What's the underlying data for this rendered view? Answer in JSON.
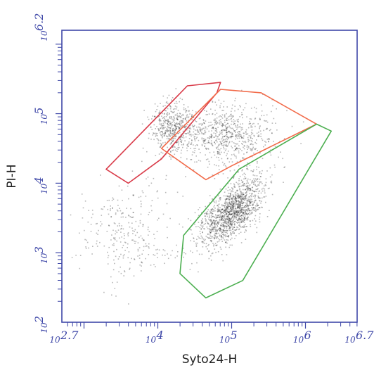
{
  "chart_data": {
    "type": "scatter",
    "title": "",
    "xlabel": "Syto24-H",
    "ylabel": "PI-H",
    "xscale": "log",
    "yscale": "log",
    "xlim": [
      2.7,
      6.7
    ],
    "ylim": [
      2,
      6.2
    ],
    "grid": false,
    "x_tick_labels": [
      {
        "value": 2.7,
        "base": "10",
        "exp": "2.7"
      },
      {
        "value": 4,
        "base": "10",
        "exp": "4"
      },
      {
        "value": 5,
        "base": "10",
        "exp": "5"
      },
      {
        "value": 6,
        "base": "10",
        "exp": "6"
      },
      {
        "value": 6.7,
        "base": "10",
        "exp": "6.7"
      }
    ],
    "y_tick_labels": [
      {
        "value": 2,
        "base": "10",
        "exp": "2"
      },
      {
        "value": 3,
        "base": "10",
        "exp": "3"
      },
      {
        "value": 4,
        "base": "10",
        "exp": "4"
      },
      {
        "value": 5,
        "base": "10",
        "exp": "5"
      },
      {
        "value": 6.2,
        "base": "10",
        "exp": "6.2"
      }
    ],
    "clusters": [
      {
        "cx": 5.0,
        "cy": 3.6,
        "sx": 0.14,
        "sy": 0.3,
        "rot": -0.7,
        "n": 1400
      },
      {
        "cx": 4.2,
        "cy": 4.8,
        "sx": 0.16,
        "sy": 0.16,
        "rot": 0.3,
        "n": 500
      },
      {
        "cx": 4.95,
        "cy": 4.7,
        "sx": 0.32,
        "sy": 0.22,
        "rot": 0.1,
        "n": 700
      },
      {
        "cx": 3.6,
        "cy": 3.3,
        "sx": 0.35,
        "sy": 0.35,
        "rot": 0.3,
        "n": 300
      }
    ],
    "gates": [
      {
        "color": "#d93c4a",
        "points": [
          [
            3.3,
            4.2
          ],
          [
            4.4,
            5.4
          ],
          [
            4.85,
            5.45
          ],
          [
            4.8,
            5.3
          ],
          [
            4.05,
            4.35
          ],
          [
            3.6,
            4.0
          ]
        ]
      },
      {
        "color": "#f26b4a",
        "points": [
          [
            4.05,
            4.5
          ],
          [
            4.85,
            5.35
          ],
          [
            5.4,
            5.3
          ],
          [
            6.15,
            4.85
          ],
          [
            5.0,
            4.25
          ],
          [
            4.65,
            4.05
          ]
        ]
      },
      {
        "color": "#4caf50",
        "points": [
          [
            4.35,
            3.25
          ],
          [
            4.3,
            2.7
          ],
          [
            4.65,
            2.35
          ],
          [
            5.15,
            2.6
          ],
          [
            6.35,
            4.75
          ],
          [
            6.15,
            4.85
          ],
          [
            5.1,
            4.2
          ]
        ]
      }
    ]
  }
}
